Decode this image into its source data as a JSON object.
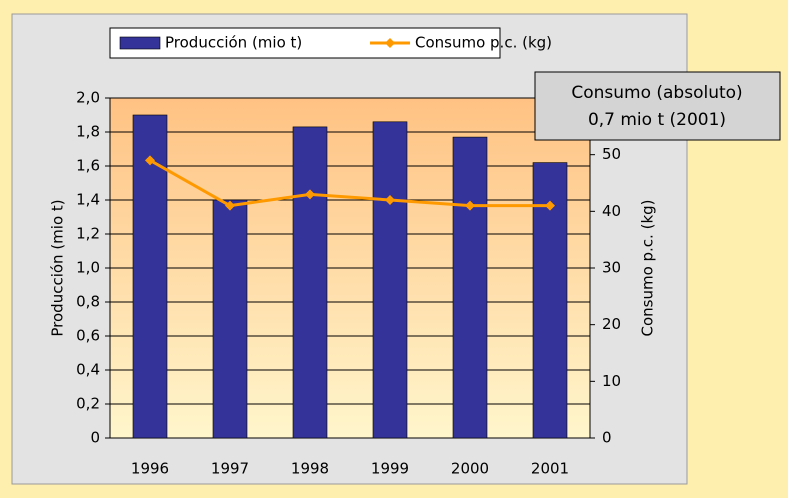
{
  "chart_data": {
    "type": "bar",
    "categories": [
      "1996",
      "1997",
      "1998",
      "1999",
      "2000",
      "2001"
    ],
    "series": [
      {
        "name": "Producción (mio t)",
        "color": "#333399",
        "values": [
          1.9,
          1.4,
          1.83,
          1.86,
          1.77,
          1.62
        ]
      },
      {
        "name": "Consumo p.c. (kg)",
        "color": "#FF9900",
        "type": "line",
        "axis": "y2",
        "values": [
          49,
          41,
          43,
          42,
          41,
          41
        ]
      }
    ],
    "y_label": "Producción (mio t)",
    "y2_label": "Consumo p.c. (kg)",
    "ylim": [
      0,
      2.0
    ],
    "yticks": [
      0,
      {
        "value": 0.2,
        "label": "0,2"
      },
      {
        "value": 0.4,
        "label": "0,4"
      },
      {
        "value": 0.6,
        "label": "0,6"
      },
      {
        "value": 0.8,
        "label": "0,8"
      },
      {
        "value": 1.0,
        "label": "1,0"
      },
      {
        "value": 1.2,
        "label": "1,2"
      },
      {
        "value": 1.4,
        "label": "1,4"
      },
      {
        "value": 1.6,
        "label": "1,6"
      },
      {
        "value": 1.8,
        "label": "1,8"
      },
      {
        "value": 2.0,
        "label": "2,0"
      }
    ],
    "y2lim": [
      0,
      60
    ],
    "y2ticks": [
      0,
      10,
      20,
      30,
      40,
      50
    ],
    "grid": true,
    "legend": "top",
    "annotation": [
      "Consumo (absoluto)",
      "0,7 mio t (2001)"
    ]
  }
}
